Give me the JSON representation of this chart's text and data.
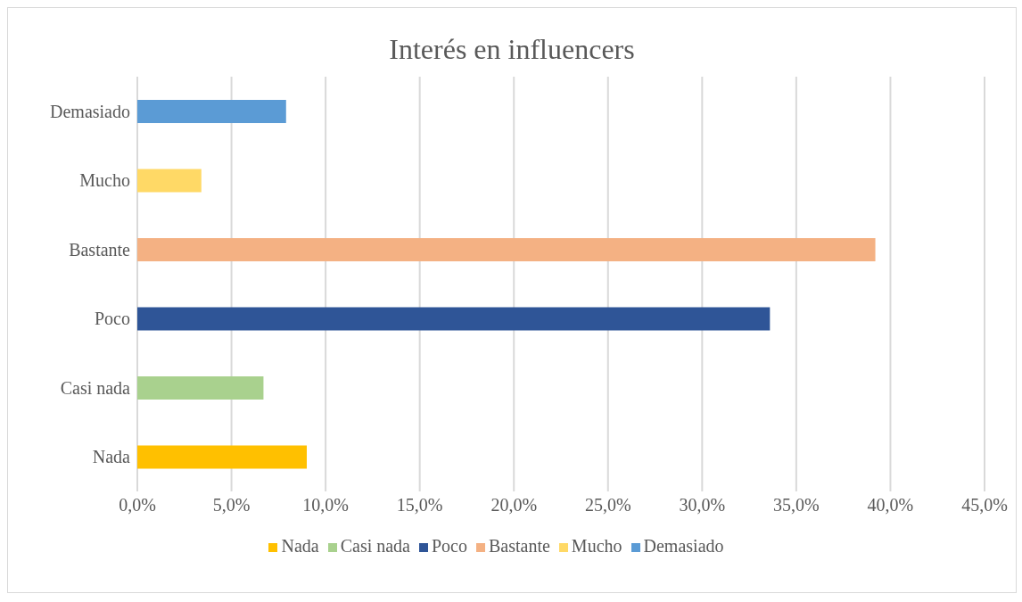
{
  "chart_data": {
    "type": "bar",
    "orientation": "horizontal",
    "stacked": true,
    "title": "Interés en influencers",
    "categories": [
      "Demasiado",
      "Mucho",
      "Bastante",
      "Poco",
      "Casi nada",
      "Nada"
    ],
    "series": [
      {
        "name": "Nada",
        "color": "#ffc000",
        "values": [
          null,
          null,
          null,
          null,
          null,
          9.0
        ]
      },
      {
        "name": "Casi nada",
        "color": "#a9d18e",
        "values": [
          null,
          null,
          null,
          null,
          6.7,
          null
        ]
      },
      {
        "name": "Poco",
        "color": "#2f5597",
        "values": [
          null,
          null,
          null,
          33.6,
          null,
          null
        ]
      },
      {
        "name": "Bastante",
        "color": "#f4b183",
        "values": [
          null,
          null,
          39.2,
          null,
          null,
          null
        ]
      },
      {
        "name": "Mucho",
        "color": "#ffd966",
        "values": [
          null,
          3.4,
          null,
          null,
          null,
          null
        ]
      },
      {
        "name": "Demasiado",
        "color": "#5b9bd5",
        "values": [
          7.9,
          null,
          null,
          null,
          null,
          null
        ]
      }
    ],
    "xlim": [
      0,
      45
    ],
    "xticks": [
      {
        "value": 0,
        "label": "0,0%"
      },
      {
        "value": 5,
        "label": "5,0%"
      },
      {
        "value": 10,
        "label": "10,0%"
      },
      {
        "value": 15,
        "label": "15,0%"
      },
      {
        "value": 20,
        "label": "20,0%"
      },
      {
        "value": 25,
        "label": "25,0%"
      },
      {
        "value": 30,
        "label": "30,0%"
      },
      {
        "value": 35,
        "label": "35,0%"
      },
      {
        "value": 40,
        "label": "40,0%"
      },
      {
        "value": 45,
        "label": "45,0%"
      }
    ],
    "grid": "x",
    "legend": "bottom"
  }
}
